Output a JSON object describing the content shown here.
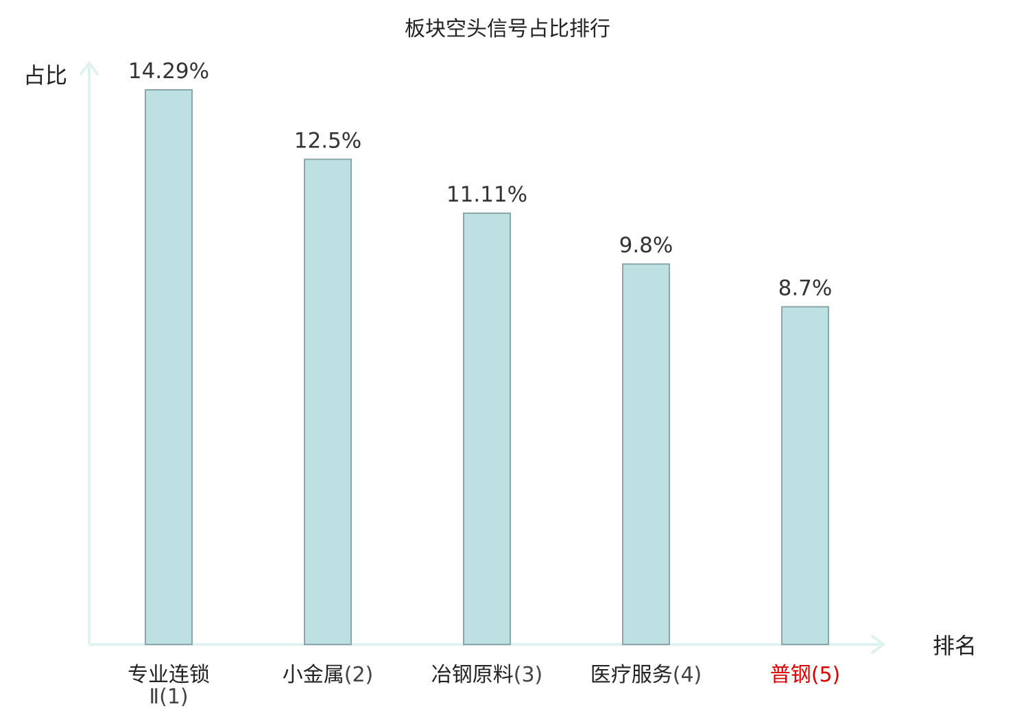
{
  "chart_data": {
    "type": "bar",
    "title": "板块空头信号占比排行",
    "ylabel": "占比",
    "xlabel": "排名",
    "ylim": [
      0,
      14.29
    ],
    "grid": false,
    "categories": [
      {
        "name": "专业连锁",
        "name_line2": "Ⅱ",
        "rank": "(1)",
        "highlight": false
      },
      {
        "name": "小金属",
        "name_line2": "",
        "rank": "(2)",
        "highlight": false
      },
      {
        "name": "冶钢原料",
        "name_line2": "",
        "rank": "(3)",
        "highlight": false
      },
      {
        "name": "医疗服务",
        "name_line2": "",
        "rank": "(4)",
        "highlight": false
      },
      {
        "name": "普钢",
        "name_line2": "",
        "rank": "(5)",
        "highlight": true
      }
    ],
    "values": [
      14.29,
      12.5,
      11.11,
      9.8,
      8.7
    ],
    "value_labels": [
      "14.29%",
      "12.5%",
      "11.11%",
      "9.8%",
      "8.7%"
    ]
  },
  "colors": {
    "bar_fill": "#bde0e2",
    "bar_stroke": "#8aa6a8",
    "axis": "#e0f2ef",
    "text": "#222222",
    "rank_text": "#444444",
    "highlight": "#dd0000"
  }
}
